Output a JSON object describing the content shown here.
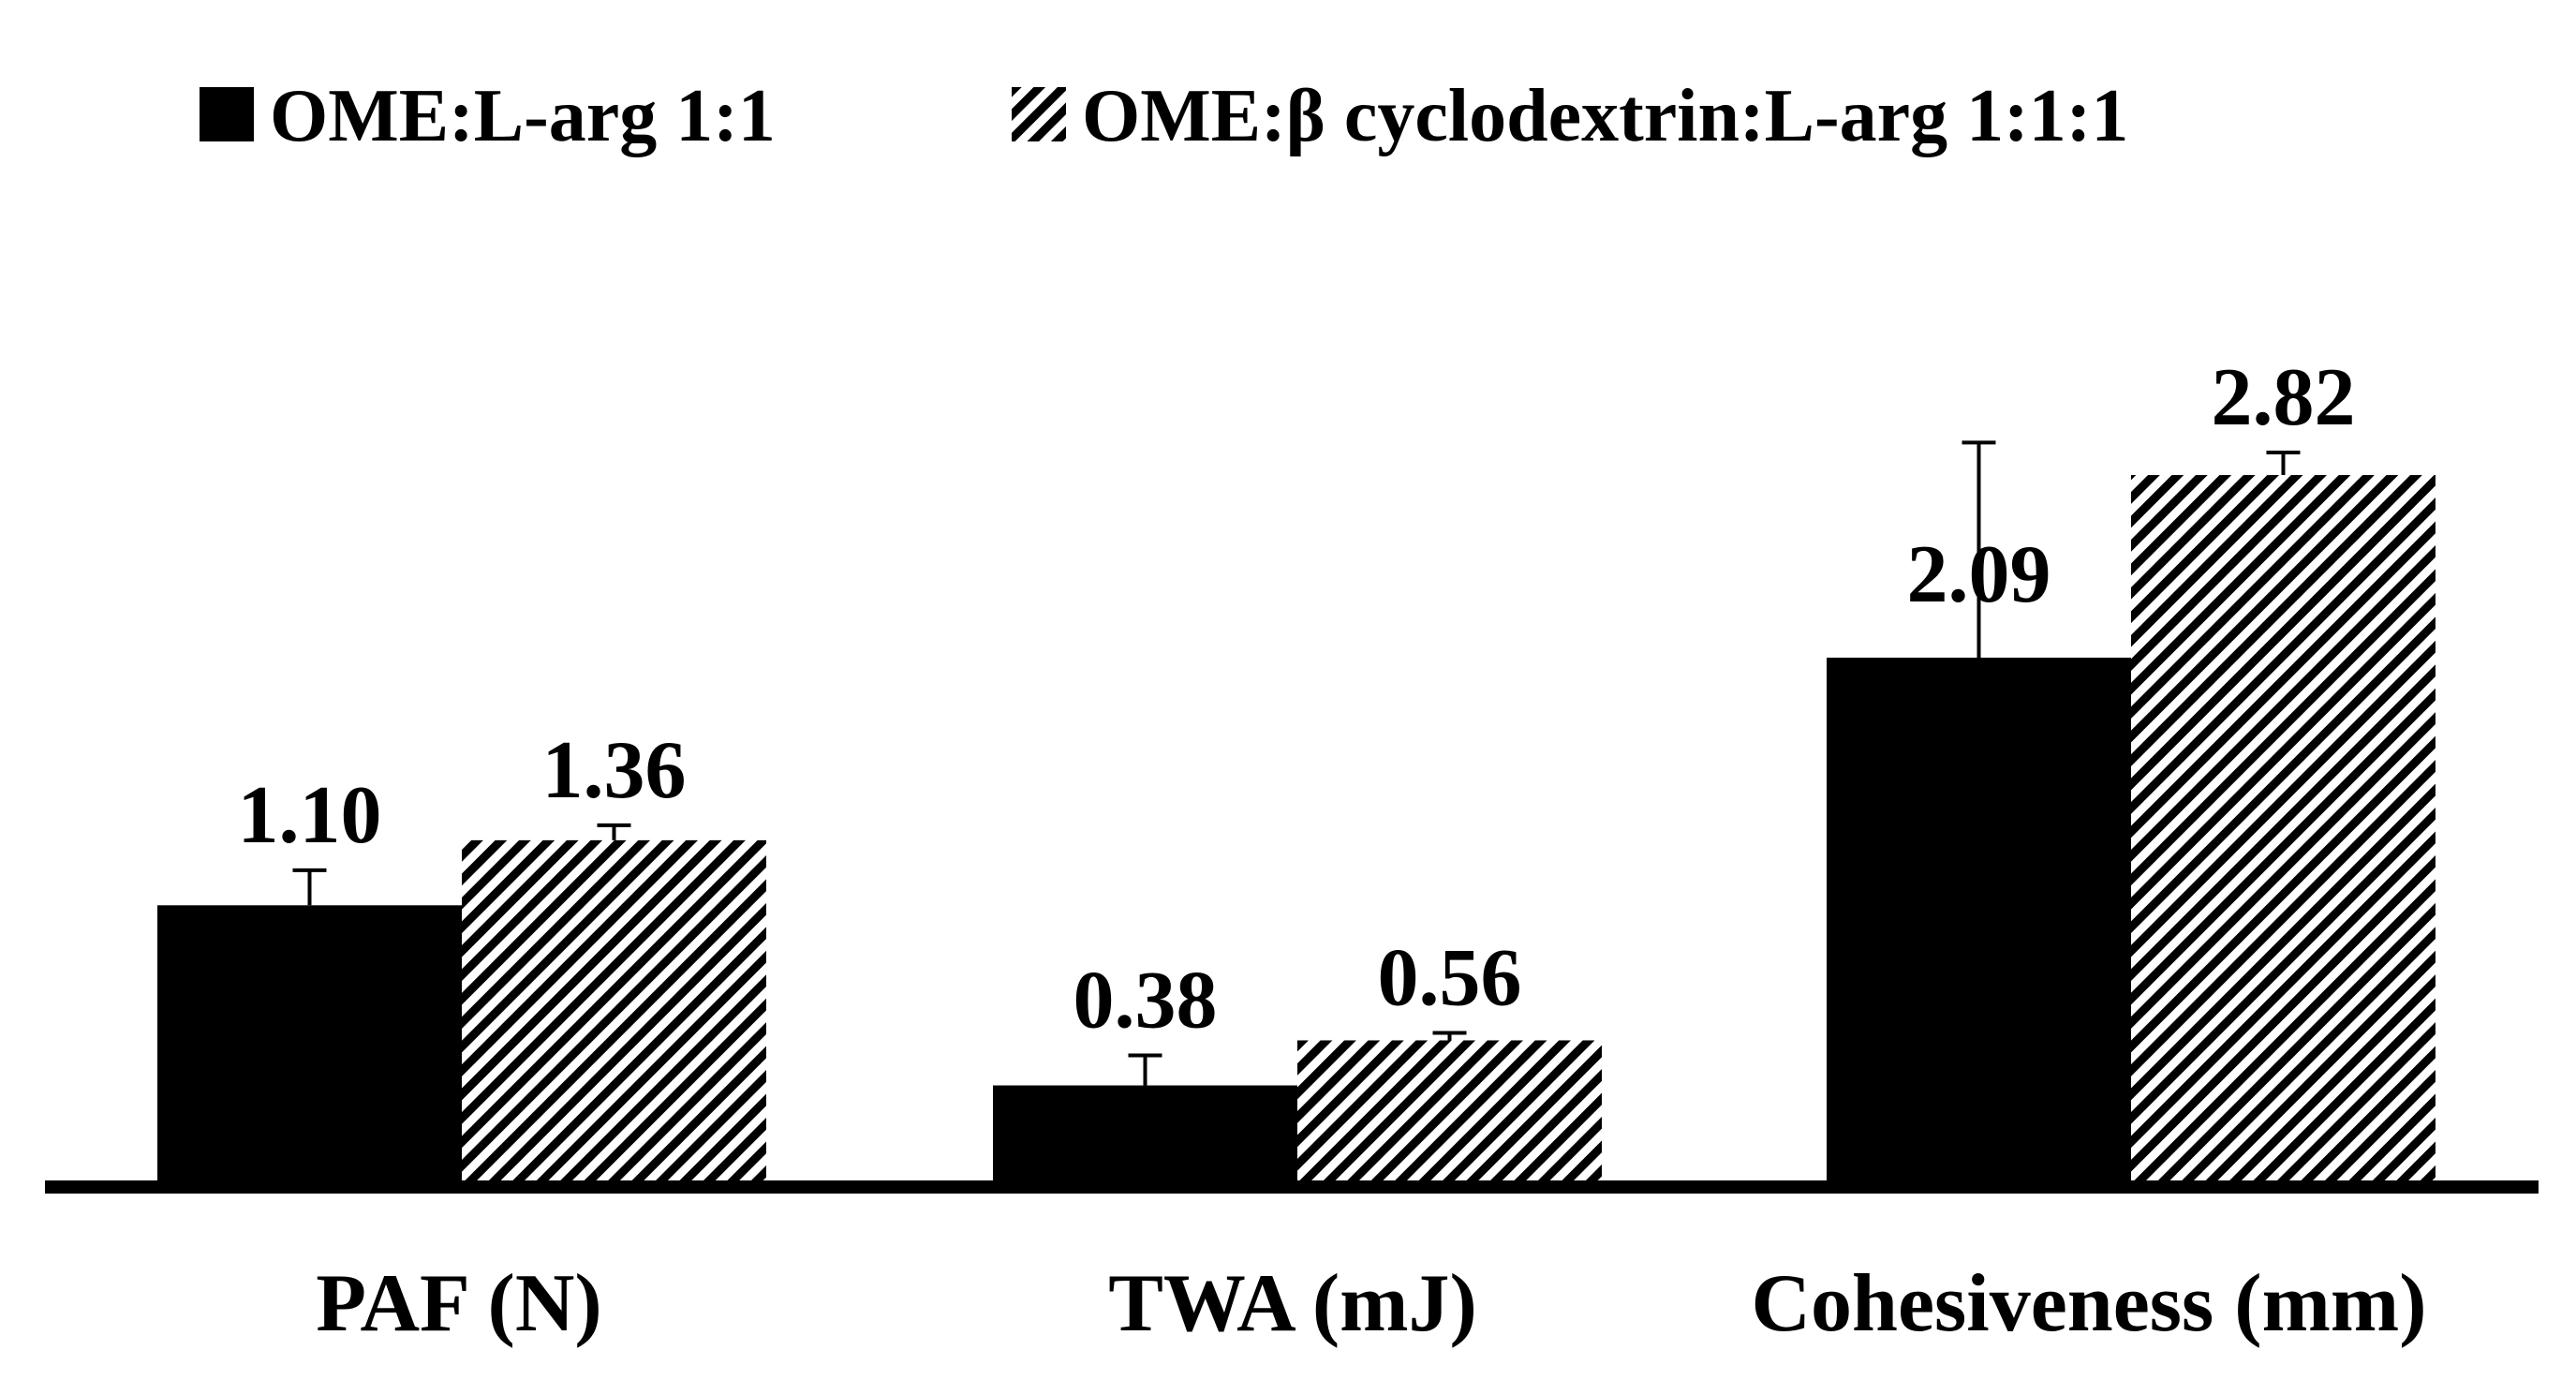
{
  "chart_data": {
    "type": "bar",
    "title": "",
    "xlabel": "",
    "ylabel": "",
    "categories": [
      "PAF (N)",
      "TWA (mJ)",
      "Cohesiveness (mm)"
    ],
    "series": [
      {
        "name": "OME:L-arg 1:1",
        "fill": "solid",
        "color": "#000000",
        "values": [
          1.1,
          0.38,
          2.09
        ],
        "errors": [
          0.14,
          0.12,
          0.86
        ],
        "labels": [
          "1.10",
          "0.38",
          "2.09"
        ]
      },
      {
        "name": "OME:β cyclodextrin:L-arg 1:1:1",
        "fill": "diagonal-hatch",
        "color": "#000000",
        "values": [
          1.36,
          0.56,
          2.82
        ],
        "errors": [
          0.06,
          0.03,
          0.09
        ],
        "labels": [
          "1.36",
          "0.56",
          "2.82"
        ]
      }
    ],
    "ylim": [
      0,
      3.0
    ],
    "grid": false,
    "y_axis_visible": false,
    "legend_position": "top"
  }
}
